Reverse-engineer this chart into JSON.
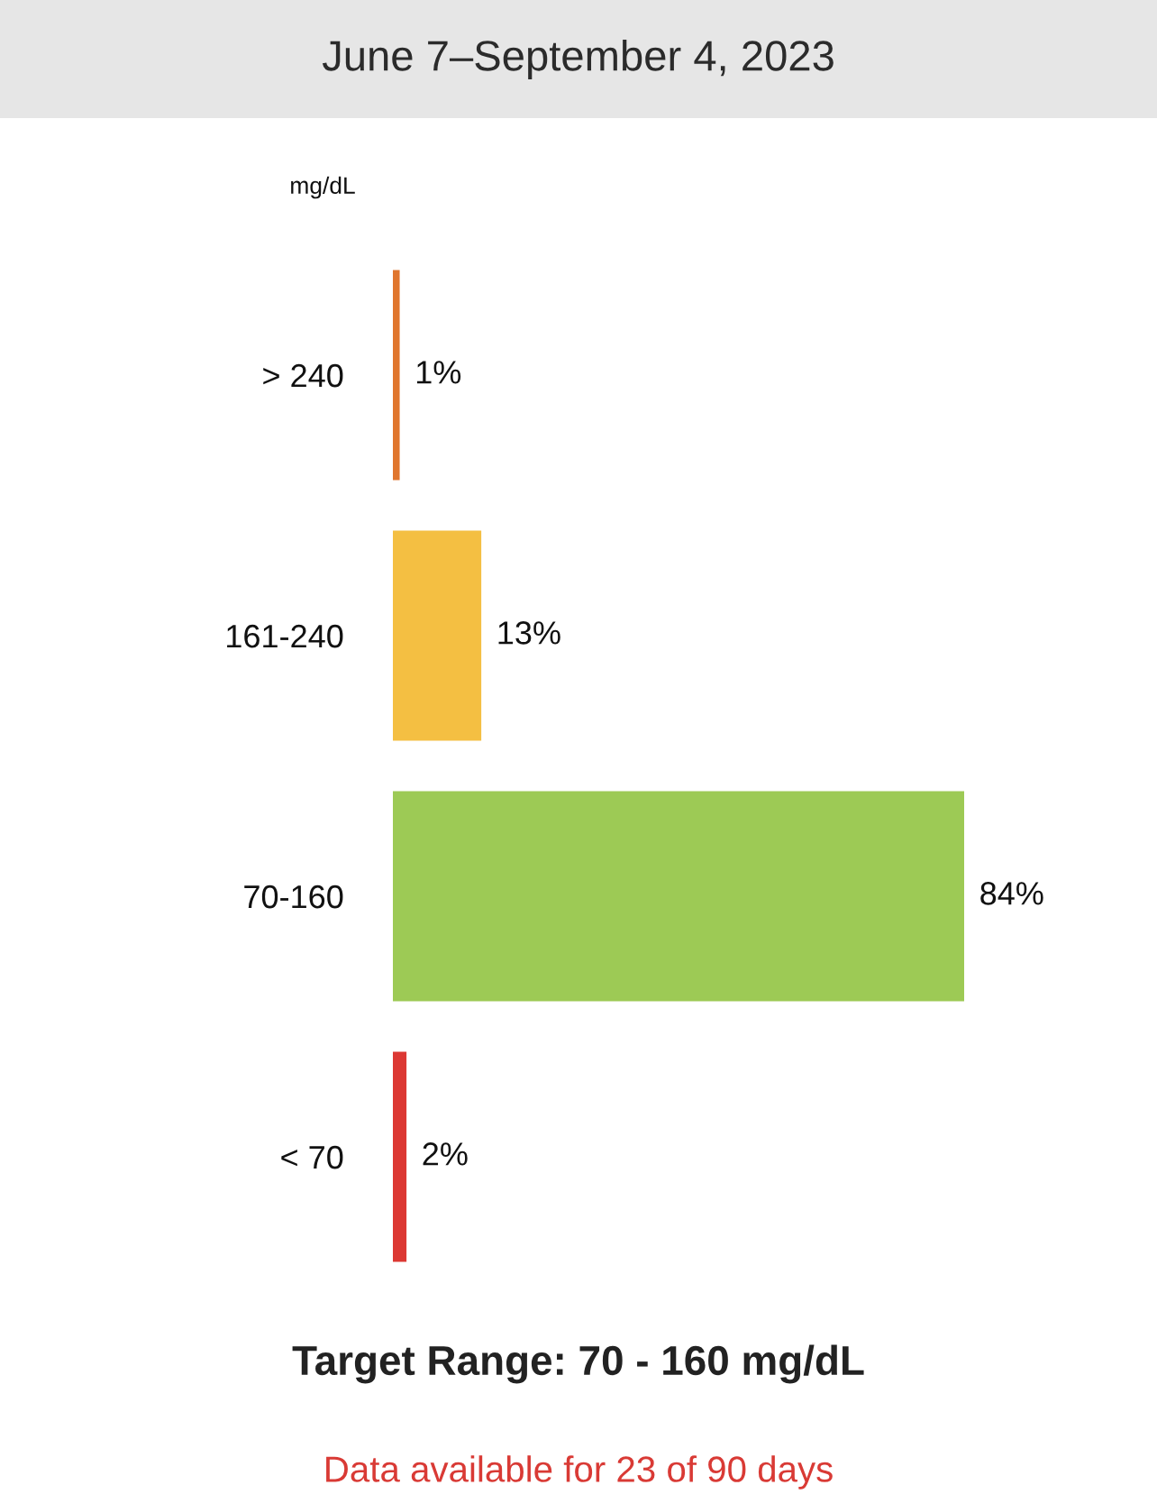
{
  "chart_data": {
    "type": "bar",
    "orientation": "horizontal",
    "title": "June 7–September 4, 2023",
    "ylabel": "mg/dL",
    "categories": [
      "> 240",
      "161-240",
      "70-160",
      "< 70"
    ],
    "values": [
      1,
      13,
      84,
      2
    ],
    "colors": [
      "#e0762e",
      "#f4bf42",
      "#9dca55",
      "#dc3833"
    ],
    "value_labels": [
      "1%",
      "13%",
      "84%",
      "2%"
    ],
    "tick_labels": "y",
    "annotations": [
      "Target Range: 70 - 160 mg/dL",
      "Data available for 23 of 90 days"
    ]
  }
}
